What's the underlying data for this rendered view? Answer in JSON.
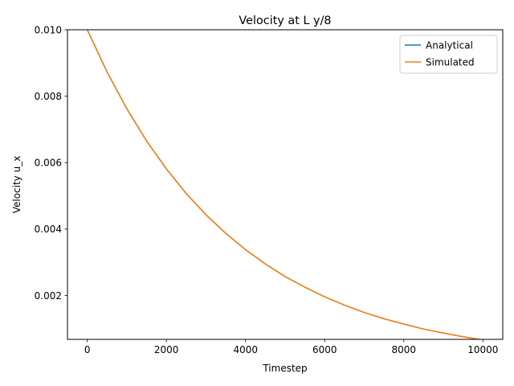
{
  "chart_data": {
    "type": "line",
    "title": "Velocity at L y/8",
    "xlabel": "Timestep",
    "ylabel": "Velocity u_x",
    "xlim": [
      -500,
      10500
    ],
    "ylim": [
      0.00068,
      0.01
    ],
    "xticks": [
      0,
      2000,
      4000,
      6000,
      8000,
      10000
    ],
    "xtick_labels": [
      "0",
      "2000",
      "4000",
      "6000",
      "8000",
      "10000"
    ],
    "yticks": [
      0.002,
      0.004,
      0.006,
      0.008,
      0.01
    ],
    "ytick_labels": [
      "0.002",
      "0.004",
      "0.006",
      "0.008",
      "0.010"
    ],
    "grid": false,
    "legend_position": "top-right",
    "x": [
      0,
      500,
      1000,
      1500,
      2000,
      2500,
      3000,
      3500,
      4000,
      4500,
      5000,
      5500,
      6000,
      6500,
      7000,
      7500,
      8000,
      8500,
      9000,
      9500,
      10000
    ],
    "series": [
      {
        "name": "Analytical",
        "color": "#1f77b4",
        "values": [
          0.01,
          0.00873,
          0.00762,
          0.00665,
          0.00581,
          0.00507,
          0.00443,
          0.00387,
          0.00338,
          0.00295,
          0.00257,
          0.00225,
          0.00196,
          0.00171,
          0.00149,
          0.0013,
          0.00114,
          0.00099,
          0.00087,
          0.00076,
          0.00066
        ]
      },
      {
        "name": "Simulated",
        "color": "#ff7f0e",
        "values": [
          0.01,
          0.00873,
          0.00762,
          0.00665,
          0.00581,
          0.00507,
          0.00443,
          0.00387,
          0.00338,
          0.00295,
          0.00257,
          0.00225,
          0.00196,
          0.00171,
          0.00149,
          0.0013,
          0.00114,
          0.00099,
          0.00087,
          0.00076,
          0.00066
        ]
      }
    ]
  }
}
